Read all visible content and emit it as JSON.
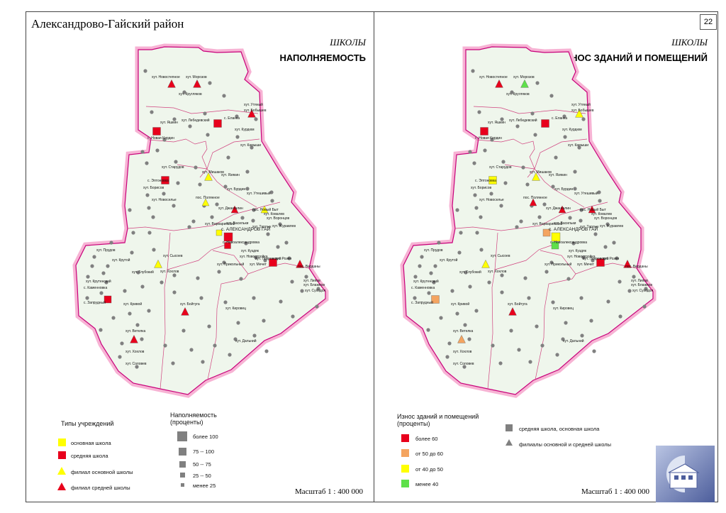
{
  "header": {
    "title": "Александрово-Гайский район",
    "page_number": "22"
  },
  "maps": [
    {
      "subtitle": "ШКОЛЫ",
      "title": "НАПОЛНЯЕМОСТЬ",
      "scale": "Масштаб 1 : 400 000"
    },
    {
      "subtitle": "ШКОЛЫ",
      "title": "ИЗНОС ЗДАНИЙ И ПОМЕЩЕНИЙ",
      "scale": "Масштаб 1 : 400 000"
    }
  ],
  "places": {
    "novostepnoe": "хут. Новостепное",
    "morozov": "хут. Морозов",
    "kruglyakov": "хут. Кругляков",
    "utyanyy": "хут. Утяный",
    "bobyshev": "хут. Бобышев",
    "elanka": "с. Еланка",
    "lebedevskiy": "хут. Лебедевский",
    "yashkin": "хут. Яшкин",
    "kurdyum": "хут. Курдюм",
    "novaya_ilyaza": "с. Новая Кирдин",
    "kamyshi": "хут. Камыши",
    "starudov": "хут. Старудов",
    "mishakov": "хут. Мишаков",
    "yazykov": "хут. Язякин",
    "eltonovka": "с. Элтоновка",
    "buraev": "хут. Бурдин",
    "borisov": "хут. Борисов",
    "uteshivy": "хут. Утешивый",
    "novoselye": "хут. Новоселье",
    "polyanov": "пос. Полянное",
    "dzhangal": "хут. Джангалин",
    "novyy_byt": "пос. Новый Быт",
    "kovalev": "хут. Ковалев",
    "vorontsov": "хут. Воронцов",
    "varvarinsky": "хут. Варваринский",
    "vasilkin": "хут. Васильки",
    "aleksandrov_gay": "с. АЛЕКСАНДРОВ ГАЙ",
    "tarlyk": "хут. Тарлык",
    "zhuravlev": "хут. Журавлев",
    "novoaleksandrovka": "с. Новоалександровка",
    "prudov": "хут. Прудов",
    "krutoy": "хут. Крутой",
    "sysoev": "хут. Сысоев",
    "kuzdyak": "хут. Куздяк",
    "novostroyka": "хут. Новостройка",
    "rozen": "хут. Розен",
    "prikolsky": "хут. Прикольный",
    "mechet": "хут. Мечет",
    "pokrovsky": "хут. Покровский",
    "verdany": "пос. Верданы",
    "khokhlov": "хут. Хохлов",
    "glubokiy": "хут. Глубокий",
    "krutenskiy": "хут. Крутенский",
    "kamennovka": "с. Каменновка",
    "lipov": "хут. Липов",
    "blazhnov": "хут. Блажнов",
    "sukhov": "хут. Суходол",
    "zapryudny": "с. Запрудный",
    "krivoy": "хут. Кривой",
    "boytuga": "хут. Бойтуга",
    "kirovets": "хут. Кировец",
    "vetelka": "хут. Ветелка",
    "dalniy": "хут. Дальний",
    "khokhlov2": "хут. Хохлов",
    "solovev": "хут. Соловев"
  },
  "legend1": {
    "types_title": "Типы учреждений",
    "items": [
      "основная школа",
      "средняя школа",
      "филиал основной школы",
      "филиал средней школы"
    ],
    "fill_title": "Наполняемость (проценты)",
    "fill_items": [
      "более 100",
      "75 -- 100",
      "50 --  75",
      "25 --  50",
      "менее 25"
    ]
  },
  "legend2": {
    "wear_title": "Износ зданий и помещений (проценты)",
    "wear_items": [
      "более 60",
      "от 50 до 60",
      "от 40 до 50",
      "менее 40"
    ],
    "symbols": [
      "средняя школа, основная школа",
      "филиалы основной и средней школы"
    ]
  },
  "colors": {
    "basic_school": "#ffff00",
    "secondary_school": "#e8001c",
    "branch_basic": "#ffff00",
    "branch_secondary": "#e8001c",
    "wear_over60": "#e8001c",
    "wear_50_60": "#f4a460",
    "wear_40_50": "#ffff00",
    "wear_under40": "#5ee04a",
    "territory": "#eff6ec",
    "border": "#f7a8d0",
    "dot": "#808080"
  },
  "icons": {
    "logo": "hemisphere-logo-icon"
  }
}
